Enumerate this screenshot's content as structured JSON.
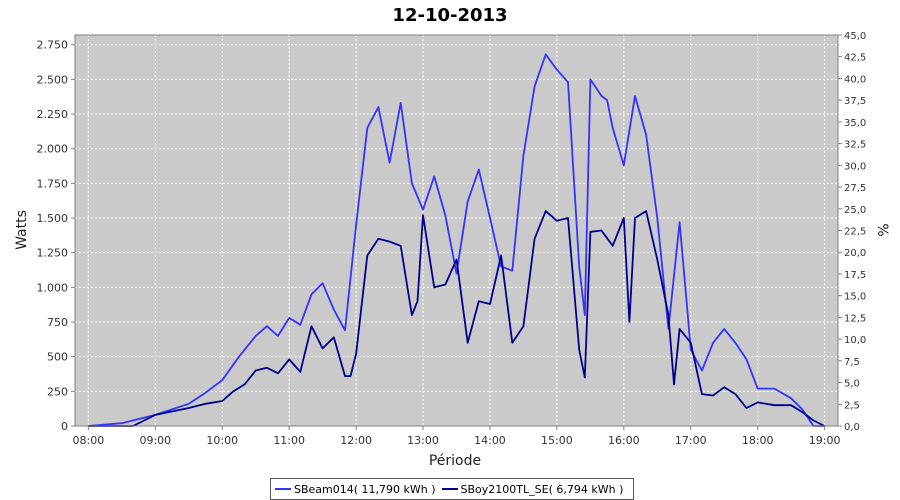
{
  "chart_data": {
    "type": "line",
    "title": "12-10-2013",
    "xlabel": "Période",
    "ylabel": "Watts",
    "y2label": "%",
    "xlim": [
      "07:48",
      "19:12"
    ],
    "x_tick_labels": [
      "08:00",
      "09:00",
      "10:00",
      "11:00",
      "12:00",
      "13:00",
      "14:00",
      "15:00",
      "16:00",
      "17:00",
      "18:00",
      "19:00"
    ],
    "ylim": [
      0,
      2820
    ],
    "y_tick_labels": [
      "0",
      "250",
      "500",
      "750",
      "1.000",
      "1.250",
      "1.500",
      "1.750",
      "2.000",
      "2.250",
      "2.500",
      "2.750"
    ],
    "y_tick_values": [
      0,
      250,
      500,
      750,
      1000,
      1250,
      1500,
      1750,
      2000,
      2250,
      2500,
      2750
    ],
    "y2lim": [
      0,
      45
    ],
    "y2_tick_labels": [
      "0,0",
      "2,5",
      "5,0",
      "7,5",
      "10,0",
      "12,5",
      "15,0",
      "17,5",
      "20,0",
      "22,5",
      "25,0",
      "27,5",
      "30,0",
      "32,5",
      "35,0",
      "37,5",
      "40,0",
      "42,5",
      "45,0"
    ],
    "grid": true,
    "legend_position": "bottom",
    "series": [
      {
        "name": "SBeam014( 11,790 kWh )",
        "color": "#3333ff",
        "x": [
          "08:00",
          "08:30",
          "09:00",
          "09:30",
          "09:45",
          "10:00",
          "10:15",
          "10:30",
          "10:40",
          "10:50",
          "11:00",
          "11:10",
          "11:20",
          "11:30",
          "11:40",
          "11:50",
          "12:00",
          "12:10",
          "12:20",
          "12:30",
          "12:40",
          "12:50",
          "13:00",
          "13:10",
          "13:20",
          "13:30",
          "13:40",
          "13:50",
          "14:00",
          "14:10",
          "14:20",
          "14:30",
          "14:40",
          "14:50",
          "15:00",
          "15:10",
          "15:20",
          "15:25",
          "15:30",
          "15:40",
          "15:45",
          "15:50",
          "16:00",
          "16:10",
          "16:20",
          "16:30",
          "16:40",
          "16:50",
          "17:00",
          "17:10",
          "17:20",
          "17:30",
          "17:40",
          "17:50",
          "18:00",
          "18:15",
          "18:30",
          "18:40",
          "18:50",
          "19:00"
        ],
        "y": [
          0,
          20,
          80,
          160,
          240,
          330,
          500,
          650,
          720,
          650,
          780,
          730,
          950,
          1030,
          840,
          690,
          1450,
          2150,
          2300,
          1900,
          2330,
          1750,
          1560,
          1800,
          1520,
          1100,
          1620,
          1850,
          1500,
          1150,
          1120,
          1950,
          2450,
          2680,
          2570,
          2480,
          1150,
          800,
          2500,
          2380,
          2350,
          2150,
          1880,
          2380,
          2100,
          1500,
          700,
          1470,
          550,
          400,
          600,
          700,
          600,
          480,
          270,
          270,
          200,
          120,
          0,
          0
        ]
      },
      {
        "name": "SBoy2100TL_SE( 6,794 kWh )",
        "color": "#00008b",
        "x": [
          "08:00",
          "08:30",
          "08:40",
          "09:00",
          "09:30",
          "09:45",
          "10:00",
          "10:10",
          "10:20",
          "10:30",
          "10:40",
          "10:50",
          "11:00",
          "11:10",
          "11:20",
          "11:30",
          "11:40",
          "11:50",
          "11:55",
          "12:00",
          "12:10",
          "12:20",
          "12:30",
          "12:40",
          "12:50",
          "12:55",
          "13:00",
          "13:10",
          "13:20",
          "13:30",
          "13:40",
          "13:50",
          "14:00",
          "14:10",
          "14:20",
          "14:30",
          "14:40",
          "14:50",
          "15:00",
          "15:10",
          "15:20",
          "15:25",
          "15:30",
          "15:40",
          "15:50",
          "16:00",
          "16:05",
          "16:10",
          "16:20",
          "16:30",
          "16:40",
          "16:45",
          "16:50",
          "17:00",
          "17:10",
          "17:20",
          "17:30",
          "17:40",
          "17:50",
          "18:00",
          "18:15",
          "18:30",
          "18:40",
          "18:50",
          "19:00"
        ],
        "y": [
          0,
          0,
          0,
          80,
          130,
          160,
          180,
          250,
          300,
          400,
          420,
          380,
          480,
          390,
          720,
          560,
          640,
          360,
          360,
          520,
          1230,
          1350,
          1330,
          1300,
          800,
          900,
          1520,
          1000,
          1020,
          1200,
          600,
          900,
          880,
          1230,
          600,
          720,
          1350,
          1550,
          1480,
          1500,
          550,
          350,
          1400,
          1410,
          1300,
          1500,
          750,
          1500,
          1550,
          1200,
          800,
          300,
          700,
          600,
          230,
          220,
          280,
          230,
          130,
          170,
          150,
          150,
          100,
          40,
          0
        ]
      }
    ]
  }
}
